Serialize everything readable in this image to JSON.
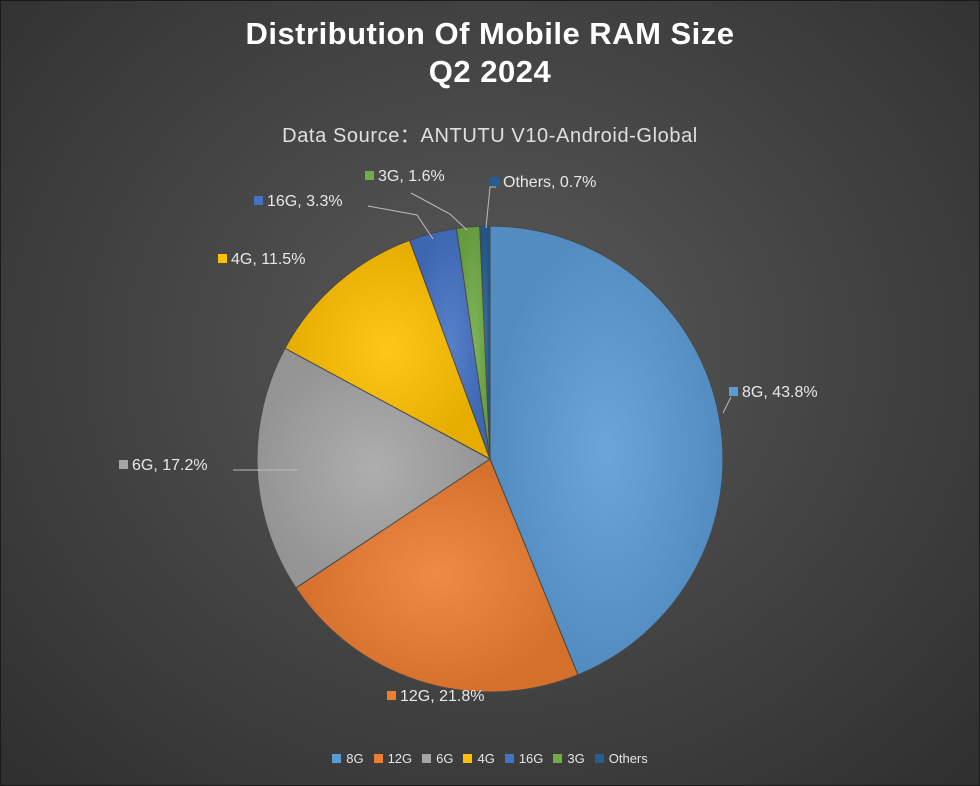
{
  "chart_data": {
    "type": "pie",
    "title_line1": "Distribution Of Mobile RAM Size",
    "title_line2": "Q2 2024",
    "subtitle": "Data Source：ANTUTU V10-Android-Global",
    "slices": [
      {
        "label": "8G",
        "value": 43.8,
        "display": "8G, 43.8%",
        "color": "#5b9bd5"
      },
      {
        "label": "12G",
        "value": 21.8,
        "display": "12G, 21.8%",
        "color": "#ed7d31"
      },
      {
        "label": "6G",
        "value": 17.2,
        "display": "6G, 17.2%",
        "color": "#a5a5a5"
      },
      {
        "label": "4G",
        "value": 11.5,
        "display": "4G, 11.5%",
        "color": "#ffc000"
      },
      {
        "label": "16G",
        "value": 3.3,
        "display": "16G, 3.3%",
        "color": "#4472c4"
      },
      {
        "label": "3G",
        "value": 1.6,
        "display": "3G, 1.6%",
        "color": "#70ad47"
      },
      {
        "label": "Others",
        "value": 0.7,
        "display": "Others, 0.7%",
        "color": "#255e91"
      }
    ],
    "legend_position": "bottom"
  }
}
